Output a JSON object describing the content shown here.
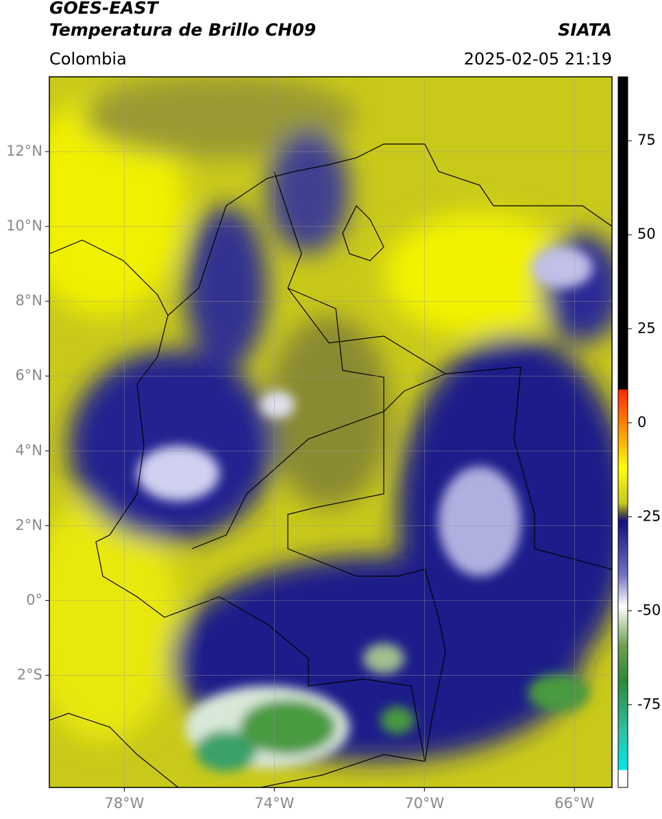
{
  "header": {
    "satellite": "GOES-EAST",
    "product": "Temperatura de Brillo CH09",
    "agency": "SIATA",
    "region": "Colombia",
    "datetime": "2025-02-05 21:19"
  },
  "chart_data": {
    "type": "map",
    "xlim": [
      -80,
      -65
    ],
    "ylim": [
      -5,
      14
    ],
    "xticks": [
      {
        "value": -78,
        "label": "78°W"
      },
      {
        "value": -74,
        "label": "74°W"
      },
      {
        "value": -70,
        "label": "70°W"
      },
      {
        "value": -66,
        "label": "66°W"
      }
    ],
    "yticks": [
      {
        "value": -2,
        "label": "2°S"
      },
      {
        "value": 0,
        "label": "0°"
      },
      {
        "value": 2,
        "label": "2°N"
      },
      {
        "value": 4,
        "label": "4°N"
      },
      {
        "value": 6,
        "label": "6°N"
      },
      {
        "value": 8,
        "label": "8°N"
      },
      {
        "value": 10,
        "label": "10°N"
      },
      {
        "value": 12,
        "label": "12°N"
      }
    ],
    "grid": true,
    "colorbar": {
      "lim": [
        -97,
        92
      ],
      "ticks": [
        75,
        50,
        25,
        0,
        -25,
        -50,
        -75
      ]
    }
  }
}
